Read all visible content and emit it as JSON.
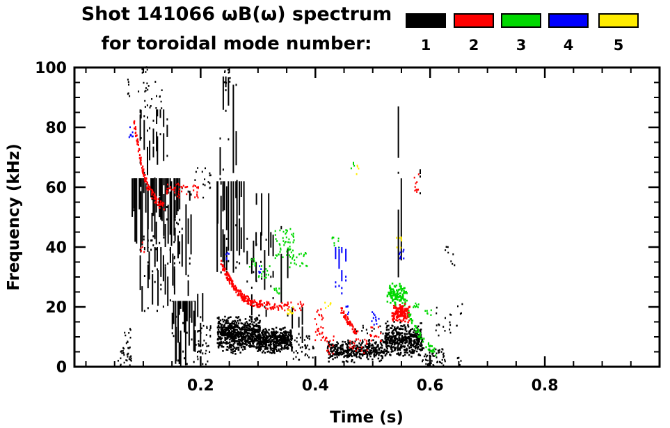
{
  "title": {
    "line1": "Shot 141066 ωB(ω) spectrum",
    "line2": "for toroidal mode number:"
  },
  "legend": {
    "modes": [
      {
        "label": "1",
        "color": "#000000"
      },
      {
        "label": "2",
        "color": "#ff0000"
      },
      {
        "label": "3",
        "color": "#00d800"
      },
      {
        "label": "4",
        "color": "#0000ff"
      },
      {
        "label": "5",
        "color": "#ffec00"
      }
    ]
  },
  "chart_data": {
    "type": "scatter",
    "title": "Shot 141066 ωB(ω) spectrum for toroidal mode number: 1 2 3 4 5",
    "xlabel": "Time (s)",
    "ylabel": "Frequency (kHz)",
    "xlim": [
      -0.02,
      1.0
    ],
    "ylim": [
      0,
      100
    ],
    "xticks": [
      {
        "v": 0.2,
        "label": "0.2"
      },
      {
        "v": 0.4,
        "label": "0.4"
      },
      {
        "v": 0.6,
        "label": "0.6"
      },
      {
        "v": 0.8,
        "label": "0.8"
      }
    ],
    "yticks": [
      {
        "v": 0,
        "label": "0"
      },
      {
        "v": 20,
        "label": "20"
      },
      {
        "v": 40,
        "label": "40"
      },
      {
        "v": 60,
        "label": "60"
      },
      {
        "v": 80,
        "label": "80"
      },
      {
        "v": 100,
        "label": "100"
      }
    ],
    "xtick_minor_interval": 0.05,
    "ytick_minor_interval": 5,
    "grid": false,
    "legend_position": "top-right",
    "series": [
      {
        "mode": 1,
        "name": "1",
        "color": "#000000"
      },
      {
        "mode": 2,
        "name": "2",
        "color": "#ff0000"
      },
      {
        "mode": 3,
        "name": "3",
        "color": "#00d800"
      },
      {
        "mode": 4,
        "name": "4",
        "color": "#0000ff"
      },
      {
        "mode": 5,
        "name": "5",
        "color": "#ffec00"
      }
    ],
    "clusters": [
      {
        "mode": 1,
        "style": "scatter",
        "t": [
          0.055,
          0.078
        ],
        "f": [
          0,
          6
        ],
        "n": 28
      },
      {
        "mode": 1,
        "style": "scatter",
        "t": [
          0.066,
          0.08
        ],
        "f": [
          6,
          13
        ],
        "n": 10
      },
      {
        "mode": 1,
        "style": "streak",
        "t": [
          0.078,
          0.165
        ],
        "f": [
          38,
          63
        ],
        "cols": 30,
        "seg": [
          6,
          24
        ],
        "per": 2
      },
      {
        "mode": 1,
        "style": "streak",
        "t": [
          0.092,
          0.155
        ],
        "f": [
          18,
          40
        ],
        "cols": 16,
        "seg": [
          3,
          12
        ],
        "per": 1
      },
      {
        "mode": 1,
        "style": "streak",
        "t": [
          0.09,
          0.142
        ],
        "f": [
          63,
          86
        ],
        "cols": 11,
        "seg": [
          2,
          10
        ],
        "per": 1
      },
      {
        "mode": 1,
        "style": "scatter",
        "t": [
          0.09,
          0.132
        ],
        "f": [
          86,
          97
        ],
        "n": 22
      },
      {
        "mode": 1,
        "style": "scatter",
        "t": [
          0.068,
          0.076
        ],
        "f": [
          90,
          96
        ],
        "n": 6
      },
      {
        "mode": 1,
        "style": "scatter",
        "t": [
          0.095,
          0.106
        ],
        "f": [
          96,
          100
        ],
        "n": 7
      },
      {
        "mode": 1,
        "style": "streak",
        "t": [
          0.148,
          0.19
        ],
        "f": [
          0,
          22
        ],
        "cols": 16,
        "seg": [
          5,
          20
        ],
        "per": 2
      },
      {
        "mode": 1,
        "style": "streak",
        "t": [
          0.15,
          0.186
        ],
        "f": [
          22,
          60
        ],
        "cols": 9,
        "seg": [
          3,
          14
        ],
        "per": 1
      },
      {
        "mode": 1,
        "style": "scatter",
        "t": [
          0.19,
          0.218
        ],
        "f": [
          0,
          14
        ],
        "n": 40
      },
      {
        "mode": 1,
        "style": "streak",
        "t": [
          0.19,
          0.207
        ],
        "f": [
          0,
          30
        ],
        "cols": 3,
        "seg": [
          4,
          14
        ],
        "per": 1
      },
      {
        "mode": 1,
        "style": "scatter",
        "t": [
          0.185,
          0.225
        ],
        "f": [
          55,
          67
        ],
        "n": 16
      },
      {
        "mode": 1,
        "style": "streak",
        "t": [
          0.225,
          0.276
        ],
        "f": [
          30,
          62
        ],
        "cols": 14,
        "seg": [
          6,
          26
        ],
        "per": 2
      },
      {
        "mode": 1,
        "style": "streak",
        "t": [
          0.23,
          0.262
        ],
        "f": [
          62,
          97
        ],
        "cols": 6,
        "seg": [
          4,
          18
        ],
        "per": 1
      },
      {
        "mode": 1,
        "style": "scatter",
        "t": [
          0.24,
          0.252
        ],
        "f": [
          94,
          100
        ],
        "n": 8
      },
      {
        "mode": 1,
        "style": "band",
        "t": [
          0.228,
          0.302
        ],
        "f": [
          4,
          17
        ],
        "n": 620
      },
      {
        "mode": 1,
        "style": "band",
        "t": [
          0.298,
          0.358
        ],
        "f": [
          4,
          13
        ],
        "n": 440
      },
      {
        "mode": 1,
        "style": "streak",
        "t": [
          0.278,
          0.33
        ],
        "f": [
          16,
          45
        ],
        "cols": 9,
        "seg": [
          2,
          8
        ],
        "per": 1
      },
      {
        "mode": 1,
        "style": "streak",
        "t": [
          0.295,
          0.322
        ],
        "f": [
          28,
          58
        ],
        "cols": 3,
        "seg": [
          10,
          24
        ],
        "per": 1
      },
      {
        "mode": 1,
        "style": "streak",
        "t": [
          0.335,
          0.352
        ],
        "f": [
          12,
          47
        ],
        "cols": 2,
        "seg": [
          8,
          28
        ],
        "per": 1
      },
      {
        "mode": 1,
        "style": "streak",
        "t": [
          0.358,
          0.378
        ],
        "f": [
          5,
          20
        ],
        "cols": 3,
        "seg": [
          3,
          10
        ],
        "per": 1
      },
      {
        "mode": 1,
        "style": "scatter",
        "t": [
          0.36,
          0.4
        ],
        "f": [
          2,
          10
        ],
        "n": 35
      },
      {
        "mode": 1,
        "style": "band",
        "t": [
          0.42,
          0.52
        ],
        "f": [
          1,
          9
        ],
        "n": 330
      },
      {
        "mode": 1,
        "style": "scatter",
        "t": [
          0.468,
          0.52
        ],
        "f": [
          8,
          14
        ],
        "n": 18
      },
      {
        "mode": 1,
        "style": "band",
        "t": [
          0.52,
          0.585
        ],
        "f": [
          3,
          15
        ],
        "n": 430
      },
      {
        "mode": 1,
        "style": "scatter",
        "t": [
          0.585,
          0.625
        ],
        "f": [
          0,
          6
        ],
        "n": 55
      },
      {
        "mode": 1,
        "style": "streak",
        "t": [
          0.543,
          0.551
        ],
        "f": [
          20,
          87
        ],
        "cols": 2,
        "seg": [
          8,
          28
        ],
        "per": 2
      },
      {
        "mode": 1,
        "style": "streak",
        "t": [
          0.573,
          0.583
        ],
        "f": [
          54,
          66
        ],
        "cols": 1,
        "seg": [
          4,
          10
        ],
        "per": 2
      },
      {
        "mode": 1,
        "style": "scatter",
        "t": [
          0.6,
          0.655
        ],
        "f": [
          10,
          22
        ],
        "n": 22
      },
      {
        "mode": 1,
        "style": "scatter",
        "t": [
          0.625,
          0.647
        ],
        "f": [
          33,
          40
        ],
        "n": 8
      },
      {
        "mode": 1,
        "style": "scatter",
        "t": [
          0.645,
          0.657
        ],
        "f": [
          0,
          3
        ],
        "n": 6
      },
      {
        "mode": 2,
        "style": "trace",
        "path": [
          [
            0.082,
            82
          ],
          [
            0.09,
            73
          ],
          [
            0.098,
            65
          ],
          [
            0.108,
            59
          ],
          [
            0.122,
            55
          ],
          [
            0.135,
            53
          ]
        ],
        "th": 3,
        "n": 110
      },
      {
        "mode": 2,
        "style": "scatter",
        "t": [
          0.138,
          0.178
        ],
        "f": [
          56,
          61
        ],
        "n": 32
      },
      {
        "mode": 2,
        "style": "scatter",
        "t": [
          0.183,
          0.196
        ],
        "f": [
          56,
          61
        ],
        "n": 12
      },
      {
        "mode": 2,
        "style": "scatter",
        "t": [
          0.093,
          0.101
        ],
        "f": [
          38,
          42
        ],
        "n": 5
      },
      {
        "mode": 2,
        "style": "trace",
        "path": [
          [
            0.233,
            35
          ],
          [
            0.245,
            30
          ],
          [
            0.258,
            26
          ],
          [
            0.272,
            23
          ],
          [
            0.29,
            21
          ],
          [
            0.315,
            20
          ],
          [
            0.34,
            19.5
          ]
        ],
        "th": 2.6,
        "n": 190
      },
      {
        "mode": 2,
        "style": "scatter",
        "t": [
          0.34,
          0.378
        ],
        "f": [
          18.5,
          21.5
        ],
        "n": 26
      },
      {
        "mode": 2,
        "style": "scatter",
        "t": [
          0.398,
          0.413
        ],
        "f": [
          6,
          19
        ],
        "n": 28
      },
      {
        "mode": 2,
        "style": "scatter",
        "t": [
          0.415,
          0.432
        ],
        "f": [
          4,
          10
        ],
        "n": 16
      },
      {
        "mode": 2,
        "style": "trace",
        "path": [
          [
            0.443,
            19
          ],
          [
            0.452,
            16
          ],
          [
            0.462,
            13
          ],
          [
            0.473,
            11
          ]
        ],
        "th": 2.4,
        "n": 55
      },
      {
        "mode": 2,
        "style": "scatter",
        "t": [
          0.458,
          0.492
        ],
        "f": [
          4,
          9
        ],
        "n": 22
      },
      {
        "mode": 2,
        "style": "scatter",
        "t": [
          0.49,
          0.515
        ],
        "f": [
          8,
          13
        ],
        "n": 14
      },
      {
        "mode": 2,
        "style": "band",
        "t": [
          0.532,
          0.563
        ],
        "f": [
          14,
          21
        ],
        "n": 130
      },
      {
        "mode": 2,
        "style": "scatter",
        "t": [
          0.571,
          0.579
        ],
        "f": [
          57,
          64
        ],
        "n": 10
      },
      {
        "mode": 3,
        "style": "scatter",
        "t": [
          0.283,
          0.296
        ],
        "f": [
          33,
          36
        ],
        "n": 8
      },
      {
        "mode": 3,
        "style": "scatter",
        "t": [
          0.3,
          0.32
        ],
        "f": [
          29,
          34
        ],
        "n": 13
      },
      {
        "mode": 3,
        "style": "scatter",
        "t": [
          0.326,
          0.362
        ],
        "f": [
          36,
          46
        ],
        "n": 48
      },
      {
        "mode": 3,
        "style": "scatter",
        "t": [
          0.354,
          0.386
        ],
        "f": [
          32,
          38
        ],
        "n": 22
      },
      {
        "mode": 3,
        "style": "scatter",
        "t": [
          0.324,
          0.336
        ],
        "f": [
          24,
          27
        ],
        "n": 8
      },
      {
        "mode": 3,
        "style": "scatter",
        "t": [
          0.428,
          0.44
        ],
        "f": [
          39,
          43
        ],
        "n": 8
      },
      {
        "mode": 3,
        "style": "scatter",
        "t": [
          0.461,
          0.468
        ],
        "f": [
          65,
          68
        ],
        "n": 4
      },
      {
        "mode": 3,
        "style": "band",
        "t": [
          0.524,
          0.558
        ],
        "f": [
          20,
          28
        ],
        "n": 115
      },
      {
        "mode": 3,
        "style": "trace",
        "path": [
          [
            0.56,
            18
          ],
          [
            0.572,
            13
          ],
          [
            0.584,
            9
          ],
          [
            0.598,
            6
          ],
          [
            0.612,
            4
          ]
        ],
        "th": 2.4,
        "n": 48
      },
      {
        "mode": 3,
        "style": "scatter",
        "t": [
          0.567,
          0.579
        ],
        "f": [
          19,
          22
        ],
        "n": 8
      },
      {
        "mode": 3,
        "style": "scatter",
        "t": [
          0.588,
          0.601
        ],
        "f": [
          16,
          19
        ],
        "n": 6
      },
      {
        "mode": 4,
        "style": "scatter",
        "t": [
          0.074,
          0.081
        ],
        "f": [
          76,
          80
        ],
        "n": 8
      },
      {
        "mode": 4,
        "style": "scatter",
        "t": [
          0.243,
          0.25
        ],
        "f": [
          35,
          38
        ],
        "n": 5
      },
      {
        "mode": 4,
        "style": "scatter",
        "t": [
          0.3,
          0.309
        ],
        "f": [
          31,
          34
        ],
        "n": 5
      },
      {
        "mode": 4,
        "style": "streak",
        "t": [
          0.434,
          0.453
        ],
        "f": [
          24,
          40
        ],
        "cols": 4,
        "seg": [
          3,
          8
        ],
        "per": 1
      },
      {
        "mode": 4,
        "style": "scatter",
        "t": [
          0.452,
          0.459
        ],
        "f": [
          17,
          20
        ],
        "n": 5
      },
      {
        "mode": 4,
        "style": "scatter",
        "t": [
          0.497,
          0.513
        ],
        "f": [
          13,
          18
        ],
        "n": 11
      },
      {
        "mode": 4,
        "style": "scatter",
        "t": [
          0.545,
          0.553
        ],
        "f": [
          35,
          39
        ],
        "n": 8
      },
      {
        "mode": 5,
        "style": "scatter",
        "t": [
          0.347,
          0.361
        ],
        "f": [
          17,
          20
        ],
        "n": 10
      },
      {
        "mode": 5,
        "style": "scatter",
        "t": [
          0.415,
          0.426
        ],
        "f": [
          19,
          22
        ],
        "n": 6
      },
      {
        "mode": 5,
        "style": "scatter",
        "t": [
          0.468,
          0.475
        ],
        "f": [
          64,
          67
        ],
        "n": 4
      },
      {
        "mode": 5,
        "style": "scatter",
        "t": [
          0.54,
          0.549
        ],
        "f": [
          39,
          43
        ],
        "n": 8
      }
    ]
  }
}
